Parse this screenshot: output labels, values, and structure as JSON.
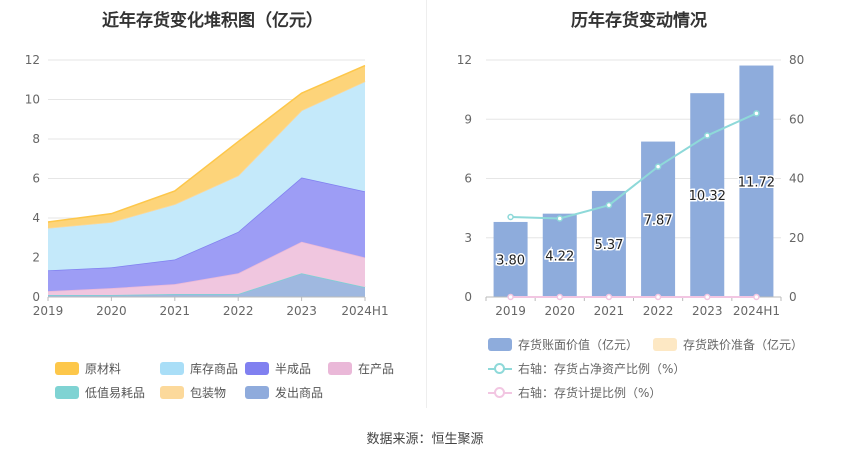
{
  "source": "数据来源：恒生聚源",
  "chart_data": [
    {
      "type": "area",
      "stacked": true,
      "title": "近年存货变化堆积图（亿元）",
      "categories": [
        "2019",
        "2020",
        "2021",
        "2022",
        "2023",
        "2024H1"
      ],
      "ylim": [
        0,
        12
      ],
      "yticks": [
        "0",
        "2",
        "4",
        "6",
        "8",
        "10",
        "12"
      ],
      "grid": true,
      "legend_position": "bottom",
      "series": [
        {
          "name": "发出商品",
          "color": "#9fb8e0",
          "values": [
            0.1,
            0.1,
            0.15,
            0.15,
            1.2,
            0.5
          ]
        },
        {
          "name": "低值易耗品",
          "color": "#8fd9d9",
          "values": [
            0.0,
            0.0,
            0.0,
            0.0,
            0.0,
            0.0
          ]
        },
        {
          "name": "在产品",
          "color": "#f0c6df",
          "values": [
            0.2,
            0.35,
            0.5,
            1.05,
            1.6,
            1.5
          ]
        },
        {
          "name": "半成品",
          "color": "#9d9df5",
          "values": [
            1.05,
            1.05,
            1.25,
            2.1,
            3.25,
            3.35
          ]
        },
        {
          "name": "库存商品",
          "color": "#c4e9fa",
          "values": [
            2.15,
            2.3,
            2.8,
            2.85,
            3.4,
            5.57
          ]
        },
        {
          "name": "包装物",
          "color": "#fde3b3",
          "values": [
            0.0,
            0.0,
            0.0,
            0.0,
            0.0,
            0.0
          ]
        },
        {
          "name": "原材料",
          "color": "#fdd47a",
          "values": [
            0.3,
            0.42,
            0.67,
            1.72,
            0.87,
            0.8
          ]
        }
      ],
      "legend_order": [
        "原材料",
        "库存商品",
        "半成品",
        "在产品",
        "低值易耗品",
        "包装物",
        "发出商品"
      ],
      "legend_colors": {
        "原材料": "#fdc74a",
        "库存商品": "#a9def7",
        "半成品": "#8080f0",
        "在产品": "#eab8d8",
        "低值易耗品": "#7fd3d3",
        "包装物": "#fcd99b",
        "发出商品": "#8fabdc"
      }
    },
    {
      "type": "bar",
      "title": "历年存货变动情况",
      "categories": [
        "2019",
        "2020",
        "2021",
        "2022",
        "2023",
        "2024H1"
      ],
      "ylim": [
        0,
        12
      ],
      "yticks": [
        "0",
        "3",
        "6",
        "9",
        "12"
      ],
      "y2lim": [
        0,
        80
      ],
      "y2ticks": [
        "0",
        "20",
        "40",
        "60",
        "80"
      ],
      "grid": true,
      "legend_position": "bottom",
      "series": [
        {
          "name": "存货账面价值（亿元）",
          "color": "#8eacdc",
          "axis": "left",
          "kind": "bar",
          "values": [
            3.8,
            4.22,
            5.37,
            7.87,
            10.32,
            11.72
          ],
          "labels": [
            "3.80",
            "4.22",
            "5.37",
            "7.87",
            "10.32",
            "11.72"
          ]
        },
        {
          "name": "存货跌价准备（亿元）",
          "color": "#fde8c4",
          "axis": "left",
          "kind": "bar",
          "values": [
            0,
            0,
            0,
            0,
            0,
            0
          ]
        },
        {
          "name": "右轴：存货占净资产比例（%）",
          "color": "#8ed9d9",
          "axis": "right",
          "kind": "line",
          "values": [
            27,
            26.5,
            31,
            44,
            54.5,
            62
          ]
        },
        {
          "name": "右轴：存货计提比例（%）",
          "color": "#f2c6e2",
          "axis": "right",
          "kind": "line",
          "values": [
            0,
            0,
            0,
            0,
            0,
            0
          ]
        }
      ]
    }
  ]
}
